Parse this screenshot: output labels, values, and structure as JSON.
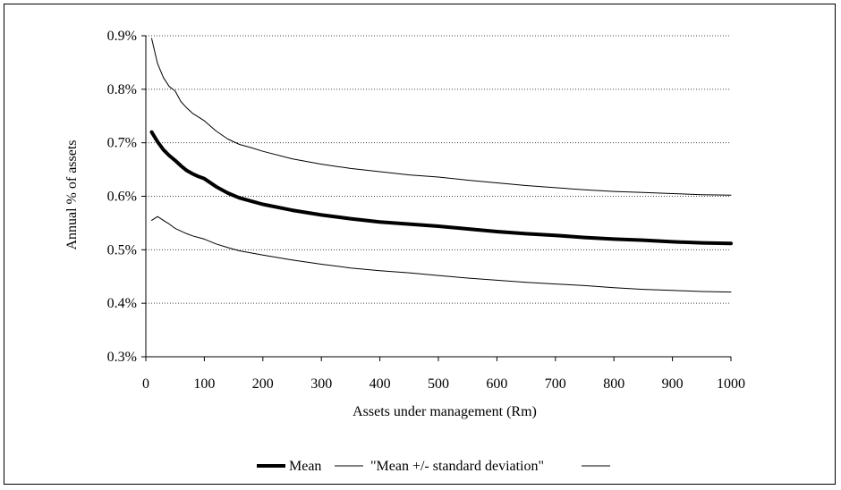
{
  "chart_data": {
    "type": "line",
    "title": "",
    "xlabel": "Assets under management (Rm)",
    "ylabel": "Annual % of assets",
    "xlim": [
      0,
      1000
    ],
    "ylim": [
      0.003,
      0.009
    ],
    "x_ticks": [
      0,
      100,
      200,
      300,
      400,
      500,
      600,
      700,
      800,
      900,
      1000
    ],
    "x_tick_labels": [
      "0",
      "100",
      "200",
      "300",
      "400",
      "500",
      "600",
      "700",
      "800",
      "900",
      "1000"
    ],
    "y_ticks": [
      0.003,
      0.004,
      0.005,
      0.006,
      0.007,
      0.008,
      0.009
    ],
    "y_tick_labels": [
      "0.3%",
      "0.4%",
      "0.5%",
      "0.6%",
      "0.7%",
      "0.8%",
      "0.9%"
    ],
    "grid": "horizontal dotted",
    "legend_position": "bottom",
    "legend": {
      "mean_label": "Mean",
      "sd_label": "\"Mean +/- standard deviation\""
    },
    "x": [
      10,
      20,
      30,
      40,
      50,
      60,
      70,
      80,
      90,
      100,
      120,
      140,
      160,
      180,
      200,
      250,
      300,
      350,
      400,
      450,
      500,
      550,
      600,
      650,
      700,
      750,
      800,
      850,
      900,
      950,
      1000
    ],
    "series": [
      {
        "name": "Mean",
        "role": "mean",
        "color": "#000000",
        "values": [
          0.0072,
          0.00702,
          0.00687,
          0.00676,
          0.00667,
          0.00657,
          0.00648,
          0.00642,
          0.00637,
          0.00633,
          0.00618,
          0.00606,
          0.00597,
          0.00591,
          0.00585,
          0.00574,
          0.00565,
          0.00558,
          0.00552,
          0.00548,
          0.00544,
          0.00539,
          0.00534,
          0.0053,
          0.00527,
          0.00523,
          0.0052,
          0.00518,
          0.00515,
          0.00513,
          0.00512
        ]
      },
      {
        "name": "\"Mean +/- standard deviation\"",
        "role": "upper",
        "color": "#000000",
        "values": [
          0.00895,
          0.00848,
          0.00822,
          0.00805,
          0.00797,
          0.00777,
          0.00765,
          0.00755,
          0.00748,
          0.00741,
          0.00722,
          0.00707,
          0.00697,
          0.00691,
          0.00684,
          0.0067,
          0.0066,
          0.00652,
          0.00646,
          0.0064,
          0.00636,
          0.0063,
          0.00625,
          0.0062,
          0.00616,
          0.00612,
          0.00609,
          0.00607,
          0.00605,
          0.00603,
          0.00602
        ]
      },
      {
        "name": "\"Mean +/- standard deviation\"",
        "role": "lower",
        "color": "#000000",
        "values": [
          0.00555,
          0.00562,
          0.00555,
          0.00548,
          0.0054,
          0.00535,
          0.0053,
          0.00526,
          0.00523,
          0.0052,
          0.00511,
          0.00504,
          0.00498,
          0.00494,
          0.0049,
          0.00481,
          0.00473,
          0.00466,
          0.00461,
          0.00457,
          0.00452,
          0.00447,
          0.00443,
          0.00439,
          0.00436,
          0.00433,
          0.00429,
          0.00426,
          0.00424,
          0.00422,
          0.00421
        ]
      }
    ]
  }
}
